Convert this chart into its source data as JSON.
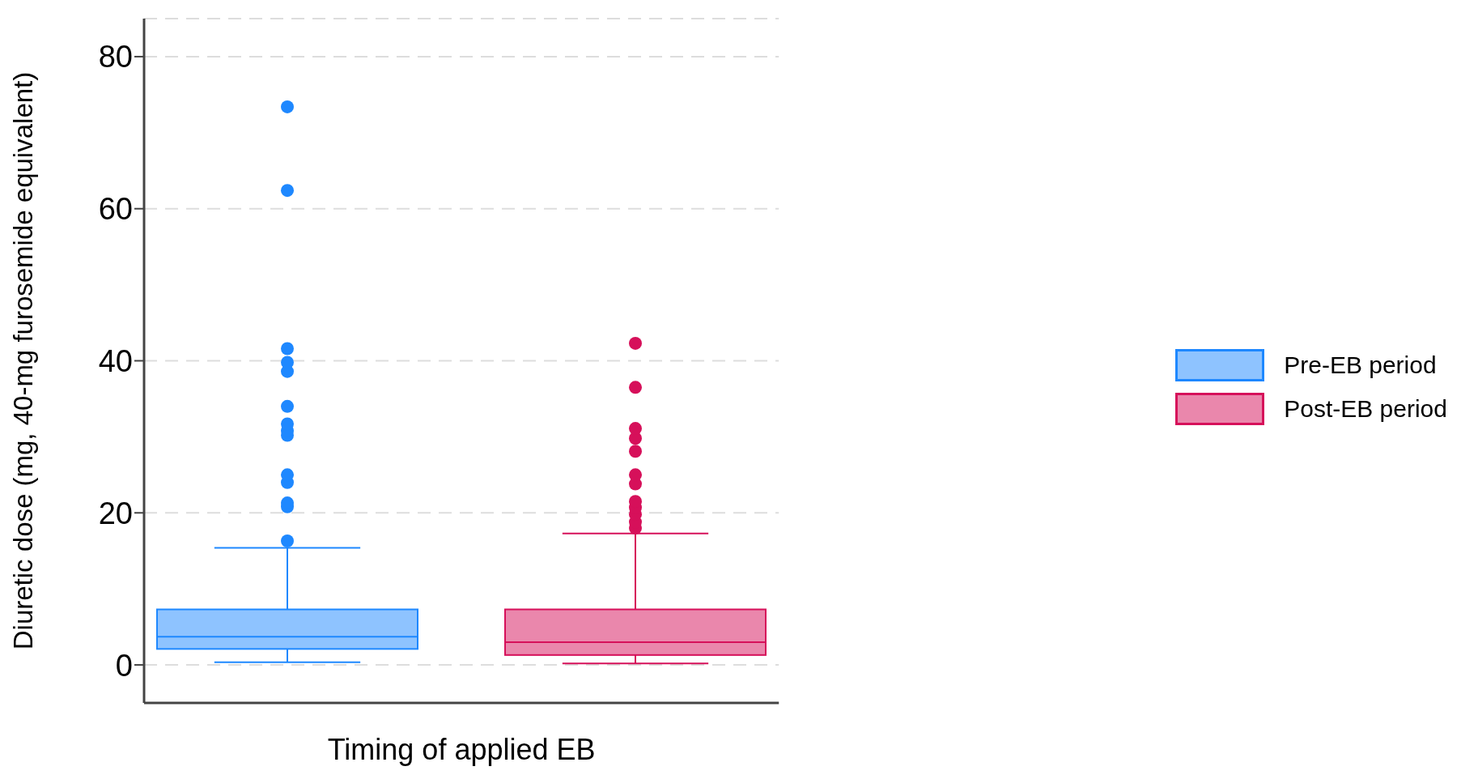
{
  "chart_data": {
    "type": "box",
    "xlabel": "Timing of applied EB",
    "ylabel": "Diuretic dose (mg, 40-mg furosemide equivalent)",
    "categories": [
      null
    ],
    "ylim": [
      -5,
      85
    ],
    "yticks": [
      0,
      20,
      40,
      60,
      80
    ],
    "grid": "y",
    "legend": "right",
    "series": [
      {
        "name": "Pre-EB period",
        "color": "#1e88ff",
        "boxes": [
          {
            "low": 0.35,
            "q1": 2.1,
            "median": 3.7,
            "q3": 7.3,
            "high": 15.4,
            "outliers": [
              16.3,
              20.8,
              21.3,
              24.0,
              25.0,
              30.2,
              30.8,
              31.7,
              34.0,
              38.6,
              39.8,
              41.6,
              62.4,
              73.4
            ]
          }
        ]
      },
      {
        "name": "Post-EB period",
        "color": "#d6105a",
        "boxes": [
          {
            "low": 0.2,
            "q1": 1.3,
            "median": 3.0,
            "q3": 7.3,
            "high": 17.3,
            "outliers": [
              18.0,
              18.8,
              19.8,
              20.7,
              21.5,
              23.8,
              25.0,
              28.1,
              29.8,
              31.1,
              36.5,
              42.3
            ]
          }
        ]
      }
    ]
  }
}
